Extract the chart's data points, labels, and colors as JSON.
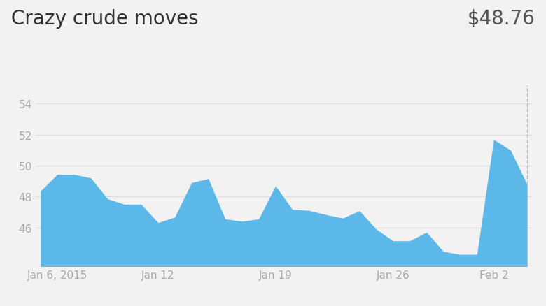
{
  "title": "Crazy crude moves",
  "price_label": "$48.76",
  "background_color": "#f2f2f2",
  "fill_color": "#5bb8e8",
  "title_color": "#333333",
  "price_color": "#555555",
  "tick_label_color": "#aaaaaa",
  "title_fontsize": 20,
  "price_fontsize": 20,
  "tick_fontsize": 11,
  "ytick_labels": [
    "54",
    "52",
    "50",
    "48",
    "46"
  ],
  "ytick_values": [
    54,
    52,
    50,
    48,
    46
  ],
  "ylim": [
    43.5,
    55.2
  ],
  "xlim_start": -0.3,
  "xlim_end": 29.3,
  "xtick_positions": [
    1,
    7,
    14,
    21,
    27
  ],
  "xtick_labels": [
    "Jan 6, 2015",
    "Jan 12",
    "Jan 19",
    "Jan 26",
    "Feb 2"
  ],
  "dates": [
    0,
    1,
    2,
    3,
    4,
    5,
    6,
    7,
    8,
    9,
    10,
    11,
    12,
    13,
    14,
    15,
    16,
    17,
    18,
    19,
    20,
    21,
    22,
    23,
    24,
    25,
    26,
    27,
    28,
    29
  ],
  "values": [
    48.36,
    49.43,
    49.43,
    49.2,
    47.85,
    47.5,
    47.5,
    46.31,
    46.67,
    48.9,
    49.16,
    46.55,
    46.4,
    46.55,
    48.7,
    47.17,
    47.1,
    46.83,
    46.6,
    47.08,
    45.89,
    45.14,
    45.14,
    45.7,
    44.45,
    44.26,
    44.26,
    51.69,
    51.0,
    48.76
  ],
  "vline_x": 29,
  "vline_color": "#bbbbbb",
  "bottom_line_color": "#cccccc"
}
